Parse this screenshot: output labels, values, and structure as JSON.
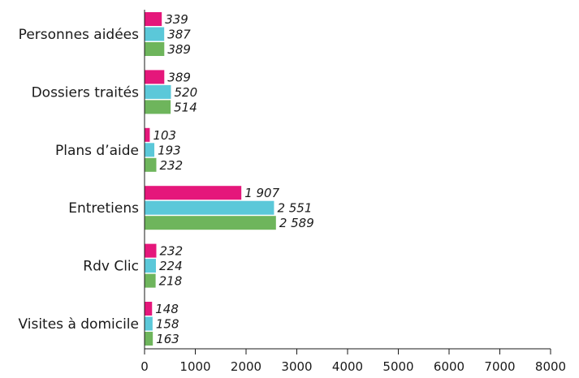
{
  "chart_data": {
    "type": "bar",
    "orientation": "horizontal",
    "categories": [
      "Personnes aidées",
      "Dossiers traités",
      "Plans d’aide",
      "Entretiens",
      "Rdv Clic",
      "Visites à domicile"
    ],
    "series": [
      {
        "color": "#e5177b",
        "values": [
          339,
          389,
          103,
          1907,
          232,
          148
        ],
        "labels": [
          "339",
          "389",
          "103",
          "1 907",
          "232",
          "148"
        ]
      },
      {
        "color": "#5bc8d9",
        "values": [
          387,
          520,
          193,
          2551,
          224,
          158
        ],
        "labels": [
          "387",
          "520",
          "193",
          "2 551",
          "224",
          "158"
        ]
      },
      {
        "color": "#6eb55c",
        "values": [
          389,
          514,
          232,
          2589,
          218,
          163
        ],
        "labels": [
          "389",
          "514",
          "232",
          "2 589",
          "218",
          "163"
        ]
      }
    ],
    "xlim": [
      0,
      8000
    ],
    "xticks": [
      "0",
      "1000",
      "2000",
      "3000",
      "4000",
      "5000",
      "6000",
      "7000",
      "8000"
    ],
    "grid": false,
    "legend": "none"
  }
}
